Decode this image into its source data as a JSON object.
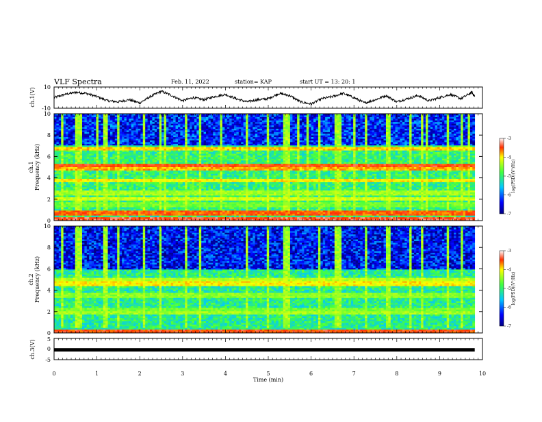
{
  "header": {
    "title": "VLF Spectra",
    "date": "Feb. 11, 2022",
    "station": "station= KAP",
    "start_ut": "start  UT =   13: 20: 1"
  },
  "chart_data": [
    {
      "type": "line",
      "panel": "ch1-waveform",
      "ylabel": "ch.1(V)",
      "yticks": [
        "10",
        "-10"
      ],
      "ylim": [
        -10,
        10
      ],
      "xlim": [
        0,
        10
      ],
      "color": "#000000",
      "x": [
        0.0,
        0.25,
        0.5,
        0.75,
        1.0,
        1.25,
        1.5,
        1.75,
        2.0,
        2.25,
        2.5,
        2.75,
        3.0,
        3.25,
        3.5,
        3.75,
        4.0,
        4.25,
        4.5,
        4.75,
        5.0,
        5.25,
        5.5,
        5.75,
        6.0,
        6.25,
        6.5,
        6.75,
        7.0,
        7.25,
        7.5,
        7.75,
        8.0,
        8.25,
        8.5,
        8.75,
        9.0,
        9.25,
        9.5,
        9.75,
        9.82
      ],
      "y": [
        0,
        3,
        5,
        4,
        1,
        -3,
        -4,
        -2,
        -5,
        1,
        6,
        2,
        -3,
        0,
        -2,
        1,
        3,
        -1,
        -4,
        -2,
        -1,
        4,
        2,
        -4,
        -6,
        -1,
        1,
        4,
        0,
        -5,
        -2,
        2,
        -4,
        -1,
        2,
        -3,
        0,
        3,
        -1,
        5,
        1
      ]
    },
    {
      "type": "heatmap",
      "panel": "ch1-spectrogram",
      "ylabel": [
        "ch.1",
        "Frequency  (kHz)"
      ],
      "yticks": [
        "0",
        "2",
        "4",
        "6",
        "8",
        "10"
      ],
      "ylim": [
        0,
        10
      ],
      "xlim": [
        0,
        10
      ],
      "colorbar": {
        "label": "log(PSD)(V²/Hz)",
        "ticks": [
          "-3",
          "-4",
          "-5",
          "-6",
          "-7"
        ],
        "range": [
          -7,
          -3
        ]
      },
      "bands_khz": [
        {
          "f": 0.2,
          "level": -3.4
        },
        {
          "f": 0.7,
          "level": -3.6
        },
        {
          "f": 1.5,
          "level": -4.6
        },
        {
          "f": 2.0,
          "level": -4.2
        },
        {
          "f": 2.6,
          "level": -4.4
        },
        {
          "f": 3.8,
          "level": -4.0
        },
        {
          "f": 4.8,
          "level": -3.8
        },
        {
          "f": 5.2,
          "level": -3.5
        },
        {
          "f": 6.7,
          "level": -3.9
        }
      ],
      "noise_region_khz": [
        7.0,
        10.0
      ],
      "noise_level": -6.3,
      "background_level": -5.0,
      "sferic_times_min": [
        0.2,
        0.5,
        0.6,
        1.0,
        1.2,
        1.5,
        2.1,
        2.5,
        2.6,
        3.1,
        3.4,
        3.9,
        4.5,
        5.0,
        5.4,
        5.5,
        5.7,
        5.9,
        6.2,
        6.6,
        6.7,
        7.0,
        7.3,
        7.8,
        8.3,
        8.6,
        8.7,
        9.2,
        9.5,
        9.7
      ]
    },
    {
      "type": "heatmap",
      "panel": "ch2-spectrogram",
      "ylabel": [
        "ch.2",
        "Frequency  (kHz)"
      ],
      "yticks": [
        "0",
        "2",
        "4",
        "6",
        "8",
        "10"
      ],
      "ylim": [
        0,
        10
      ],
      "xlim": [
        0,
        10
      ],
      "colorbar": {
        "label": "log(PSD)(V²/Hz)",
        "ticks": [
          "-3",
          "-4",
          "-5",
          "-6",
          "-7"
        ],
        "range": [
          -7,
          -3
        ]
      },
      "bands_khz": [
        {
          "f": 0.2,
          "level": -3.5
        },
        {
          "f": 1.9,
          "level": -4.4
        },
        {
          "f": 2.2,
          "level": -4.6
        },
        {
          "f": 3.5,
          "level": -4.5
        },
        {
          "f": 4.6,
          "level": -4.0
        },
        {
          "f": 5.0,
          "level": -4.3
        }
      ],
      "noise_region_khz": [
        6.0,
        10.0
      ],
      "noise_level": -6.4,
      "background_level": -5.1,
      "sferic_times_min": [
        0.2,
        0.5,
        0.6,
        1.2,
        1.5,
        2.1,
        2.5,
        3.1,
        3.4,
        4.5,
        5.0,
        5.4,
        5.5,
        6.2,
        6.6,
        6.7,
        7.3,
        7.8,
        8.3,
        8.6,
        9.2,
        9.5
      ]
    },
    {
      "type": "line",
      "panel": "ch3-level",
      "ylabel": "ch.3(V)",
      "yticks": [
        "5",
        "0",
        "-5"
      ],
      "ylim": [
        -5,
        5
      ],
      "xlim": [
        0,
        10
      ],
      "level_v": -0.4,
      "xlabel": "Time  (min)",
      "xticks": [
        "0",
        "1",
        "2",
        "3",
        "4",
        "5",
        "6",
        "7",
        "8",
        "9",
        "10"
      ]
    }
  ]
}
